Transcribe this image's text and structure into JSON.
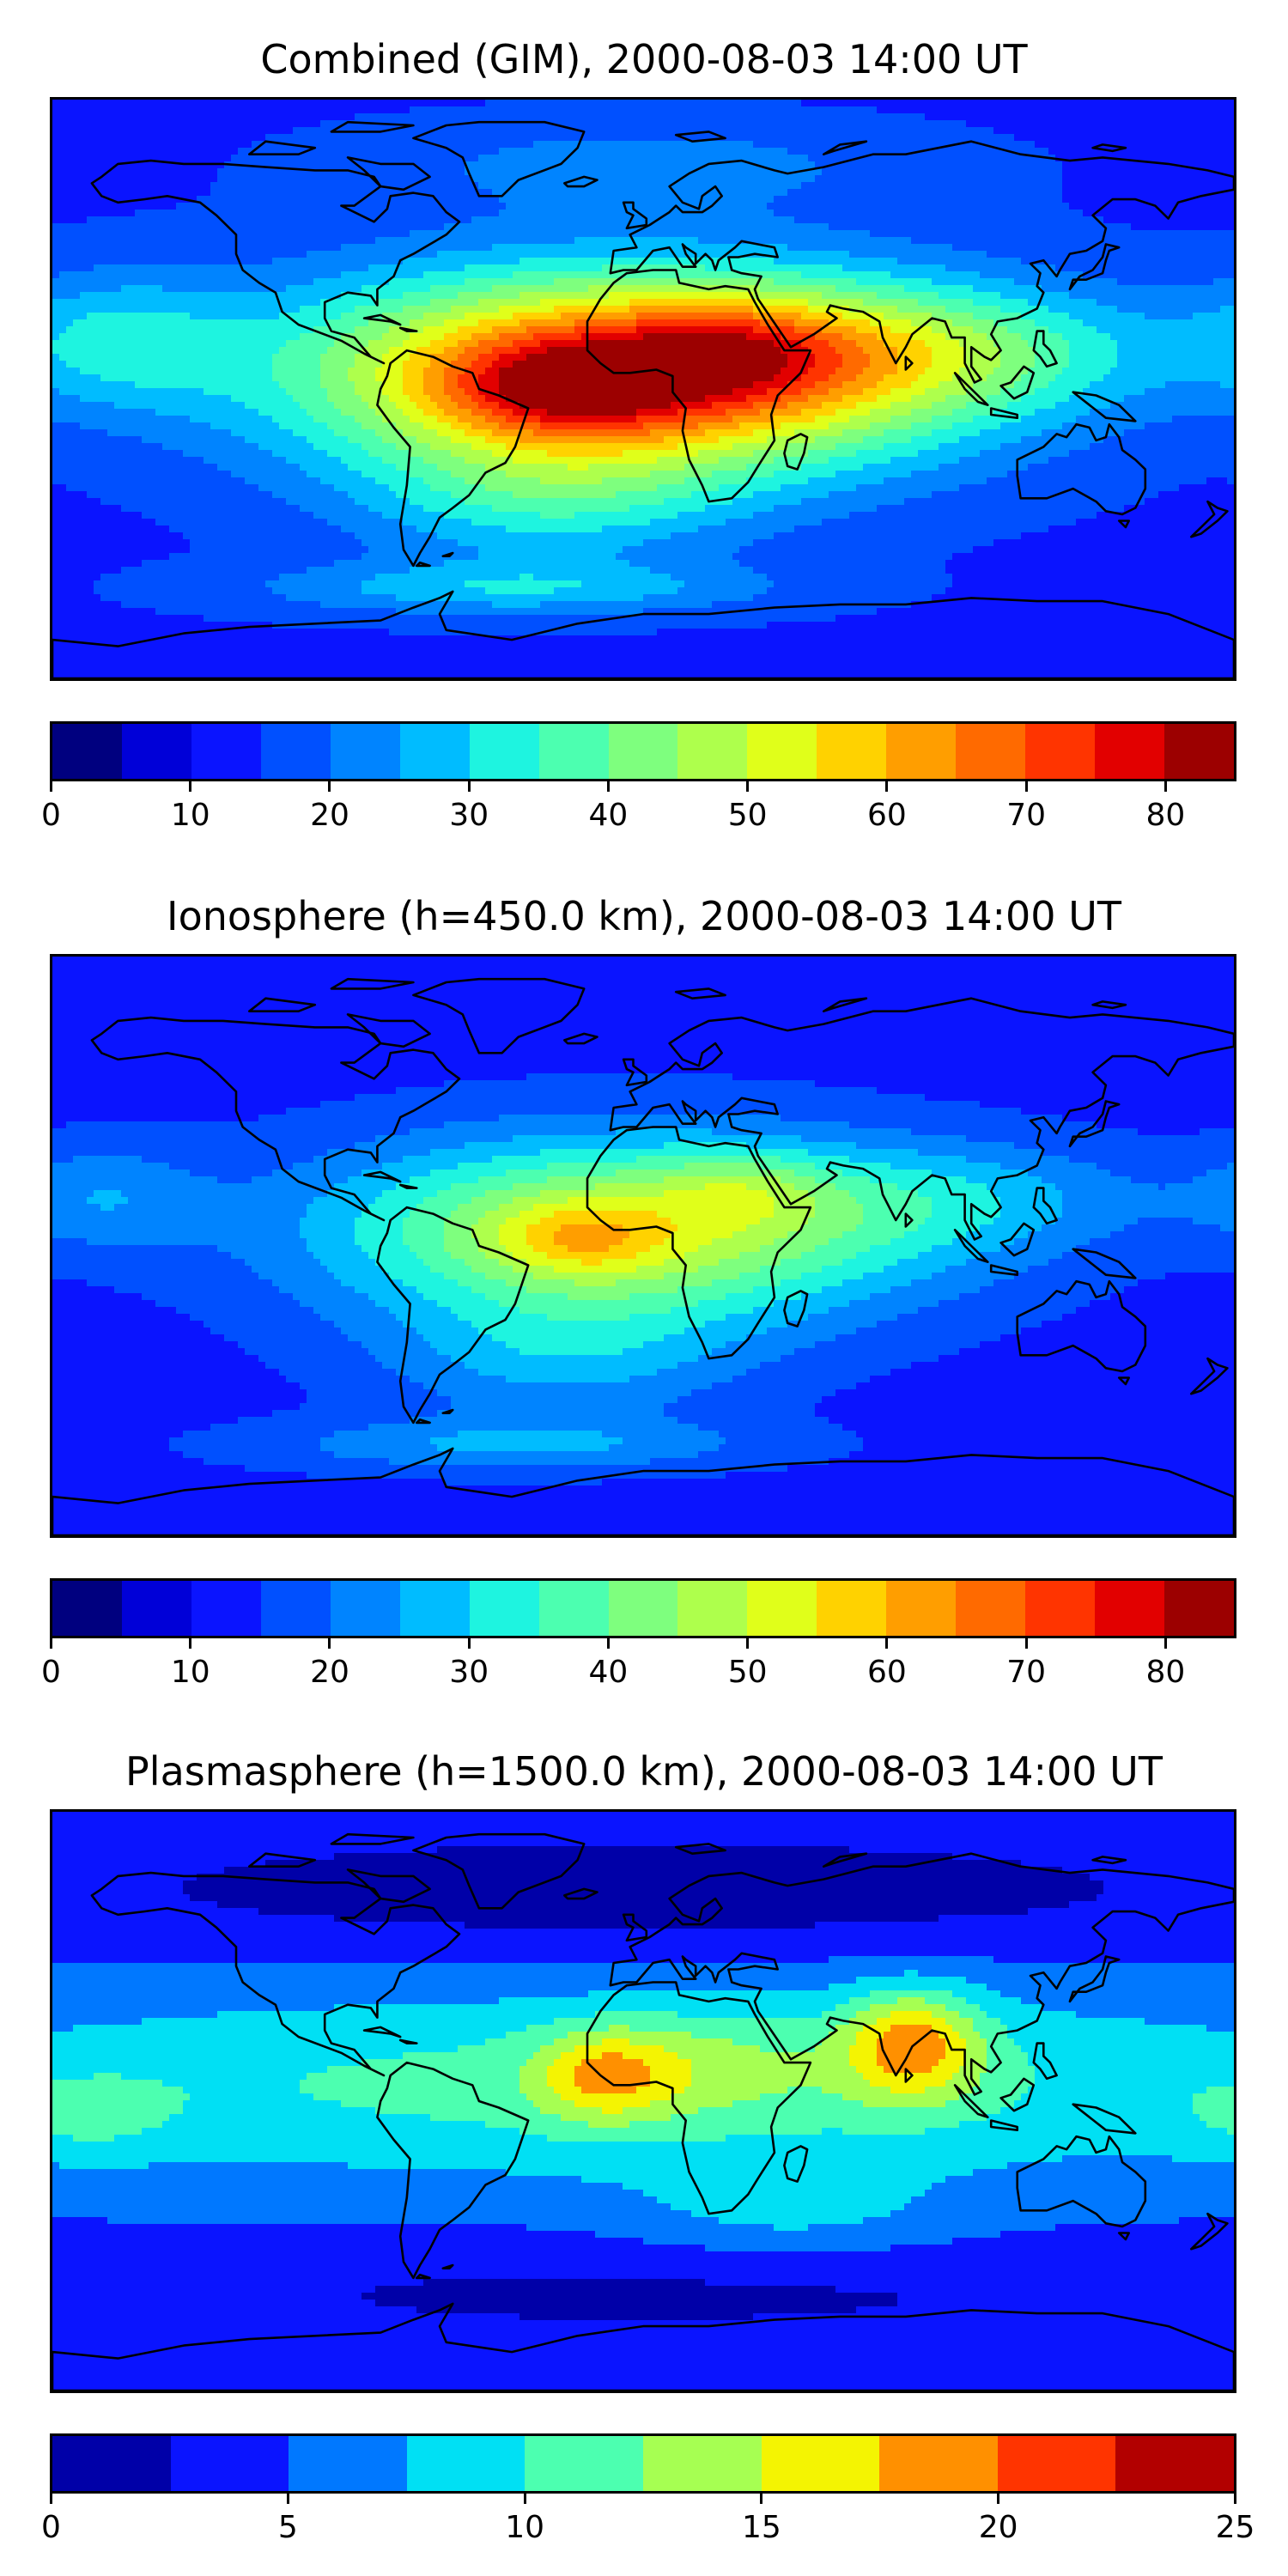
{
  "jet_colors_17": [
    "#00007f",
    "#0000d8",
    "#0a14ff",
    "#0050ff",
    "#0084ff",
    "#00bcff",
    "#1ef4e0",
    "#4cffb0",
    "#7eff7e",
    "#aeff4c",
    "#e0ff1a",
    "#ffd200",
    "#ff9e00",
    "#ff6a00",
    "#ff3400",
    "#e20000",
    "#9c0000"
  ],
  "jet_colors_10": [
    "#0000a8",
    "#0a14ff",
    "#0078ff",
    "#00e0f4",
    "#4cffb0",
    "#a6ff52",
    "#f4f402",
    "#ff9000",
    "#ff3400",
    "#b20000"
  ],
  "land_outline_color": "#000000",
  "panels": [
    {
      "title": "Combined (GIM), 2000-08-03 14:00 UT",
      "colorbar": {
        "min": 0,
        "max": 85,
        "step": 5,
        "ticks": [
          {
            "v": 0,
            "label": "0"
          },
          {
            "v": 10,
            "label": "10"
          },
          {
            "v": 20,
            "label": "20"
          },
          {
            "v": 30,
            "label": "30"
          },
          {
            "v": 40,
            "label": "40"
          },
          {
            "v": 50,
            "label": "50"
          },
          {
            "v": 60,
            "label": "60"
          },
          {
            "v": 70,
            "label": "70"
          },
          {
            "v": 80,
            "label": "80"
          }
        ]
      },
      "field": {
        "background": 14,
        "blobs": [
          {
            "lon": -5,
            "lat": 5,
            "a": 62,
            "sx": 70,
            "sy": 22
          },
          {
            "lon": -25,
            "lat": 0,
            "a": 18,
            "sx": 25,
            "sy": 10
          },
          {
            "lon": 25,
            "lat": 12,
            "a": 12,
            "sx": 22,
            "sy": 10
          },
          {
            "lon": -30,
            "lat": -35,
            "a": 14,
            "sx": 40,
            "sy": 14
          },
          {
            "lon": 90,
            "lat": 12,
            "a": 16,
            "sx": 50,
            "sy": 14
          },
          {
            "lon": -160,
            "lat": 15,
            "a": 14,
            "sx": 25,
            "sy": 15
          },
          {
            "lon": -40,
            "lat": -62,
            "a": 14,
            "sx": 55,
            "sy": 6
          },
          {
            "lon": 0,
            "lat": 70,
            "a": 8,
            "sx": 60,
            "sy": 10
          }
        ]
      }
    },
    {
      "title": "Ionosphere  (h=450.0 km), 2000-08-03 14:00 UT",
      "colorbar": {
        "min": 0,
        "max": 85,
        "step": 5,
        "ticks": [
          {
            "v": 0,
            "label": "0"
          },
          {
            "v": 10,
            "label": "10"
          },
          {
            "v": 20,
            "label": "20"
          },
          {
            "v": 30,
            "label": "30"
          },
          {
            "v": 40,
            "label": "40"
          },
          {
            "v": 50,
            "label": "50"
          },
          {
            "v": 60,
            "label": "60"
          },
          {
            "v": 70,
            "label": "70"
          },
          {
            "v": 80,
            "label": "80"
          }
        ]
      },
      "field": {
        "background": 13,
        "blobs": [
          {
            "lon": -5,
            "lat": 5,
            "a": 38,
            "sx": 65,
            "sy": 20
          },
          {
            "lon": -20,
            "lat": 2,
            "a": 12,
            "sx": 18,
            "sy": 8
          },
          {
            "lon": 30,
            "lat": 18,
            "a": 9,
            "sx": 18,
            "sy": 8
          },
          {
            "lon": -25,
            "lat": -35,
            "a": 12,
            "sx": 40,
            "sy": 14
          },
          {
            "lon": 100,
            "lat": 15,
            "a": 10,
            "sx": 40,
            "sy": 12
          },
          {
            "lon": -165,
            "lat": 15,
            "a": 10,
            "sx": 22,
            "sy": 12
          },
          {
            "lon": -40,
            "lat": -62,
            "a": 12,
            "sx": 55,
            "sy": 6
          }
        ]
      }
    },
    {
      "title": "Plasmasphere (h=1500.0 km), 2000-08-03 14:00 UT",
      "colorbar": {
        "min": 0,
        "max": 25,
        "step": 2.5,
        "ticks": [
          {
            "v": 0,
            "label": "0"
          },
          {
            "v": 5,
            "label": "5"
          },
          {
            "v": 10,
            "label": "10"
          },
          {
            "v": 15,
            "label": "15"
          },
          {
            "v": 20,
            "label": "20"
          },
          {
            "v": 25,
            "label": "25"
          }
        ]
      },
      "field": {
        "background": 4.5,
        "blobs": [
          {
            "lon": 0,
            "lat": 5,
            "a": 6.5,
            "sx": 180,
            "sy": 22
          },
          {
            "lon": 0,
            "lat": 65,
            "a": -3.5,
            "sx": 140,
            "sy": 14
          },
          {
            "lon": 0,
            "lat": -60,
            "a": -2.5,
            "sx": 140,
            "sy": 12
          },
          {
            "lon": 82,
            "lat": 18,
            "a": 10,
            "sx": 15,
            "sy": 12
          },
          {
            "lon": -12,
            "lat": 8,
            "a": 7,
            "sx": 15,
            "sy": 10
          },
          {
            "lon": 20,
            "lat": 12,
            "a": 3,
            "sx": 25,
            "sy": 12
          },
          {
            "lon": -170,
            "lat": -5,
            "a": 3,
            "sx": 20,
            "sy": 10
          },
          {
            "lon": 45,
            "lat": -35,
            "a": 3,
            "sx": 35,
            "sy": 10
          }
        ]
      }
    }
  ]
}
